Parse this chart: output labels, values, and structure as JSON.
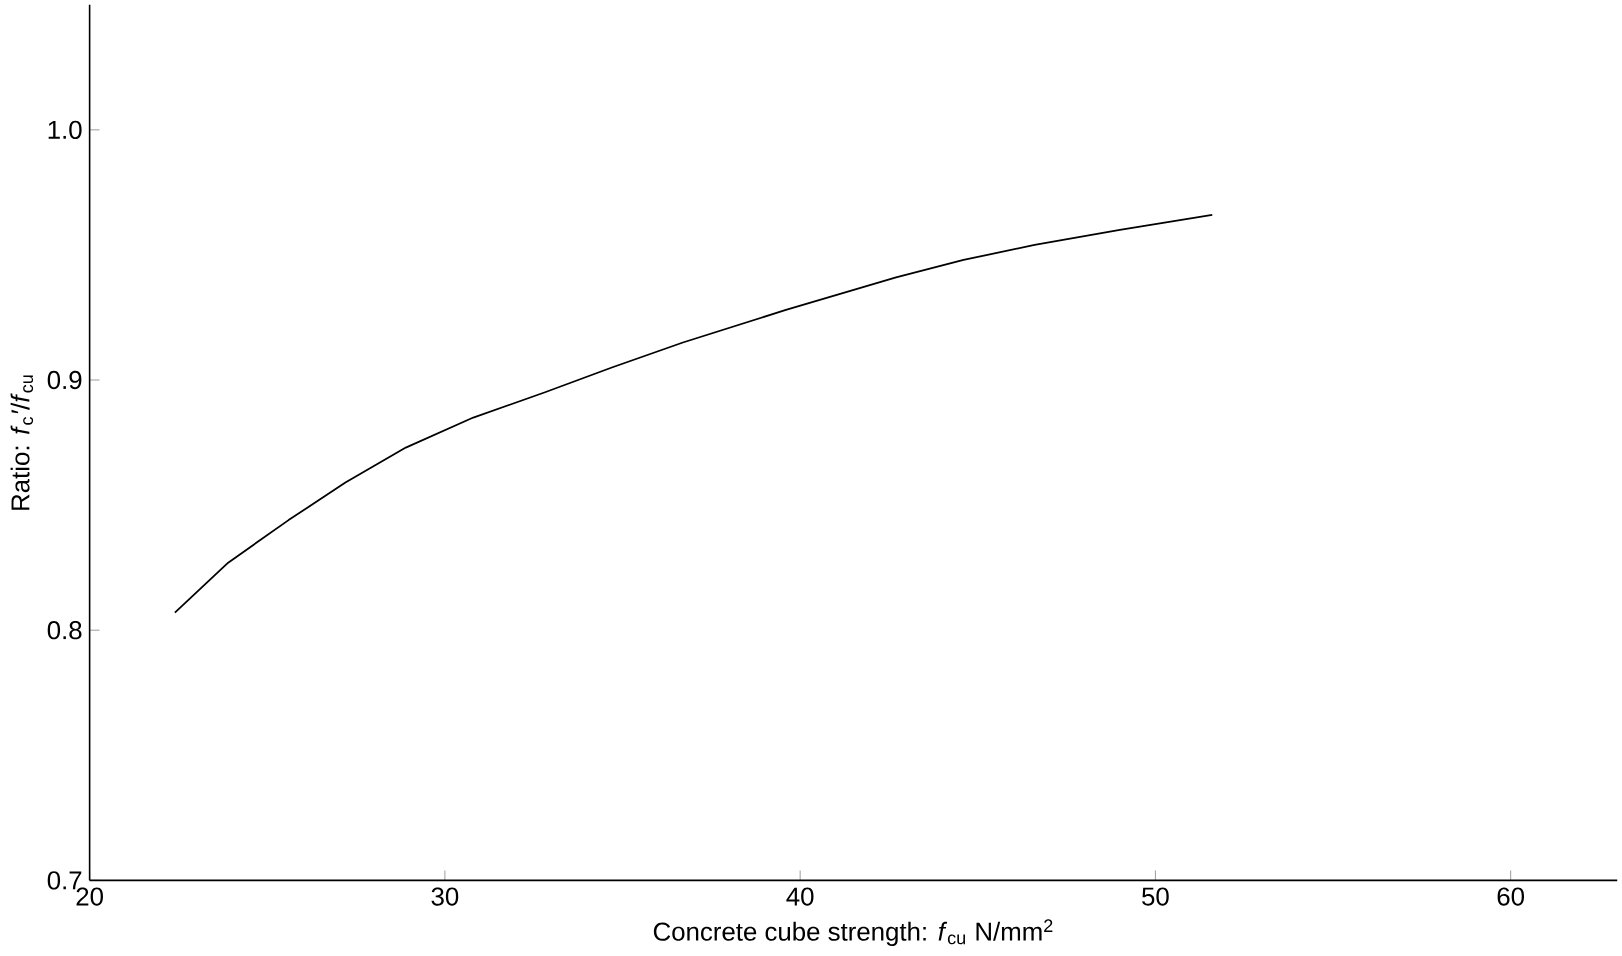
{
  "chart_data": {
    "type": "line",
    "xlabel": "Concrete cube strength: *f*$_{cu}$ N/mm$^{2}$",
    "ylabel": "Ratio: *f*$_{c}$*′*/*f*$_{cu}$",
    "xlim": [
      20,
      63
    ],
    "ylim": [
      0.7,
      1.05
    ],
    "xticks": [
      20,
      30,
      40,
      50,
      60
    ],
    "yticks": [
      {
        "value": 0.7,
        "label": "0.7"
      },
      {
        "value": 0.8,
        "label": "0.8"
      },
      {
        "value": 0.9,
        "label": "0.9"
      },
      {
        "value": 1.0,
        "label": "1.0"
      }
    ],
    "series": [
      {
        "color": "#000000",
        "x": [
          22.4,
          23.9,
          25.6,
          27.2,
          28.9,
          30.8,
          32.8,
          34.7,
          36.7,
          39.6,
          42.7,
          44.6,
          46.6,
          49.0,
          51.6
        ],
        "values": [
          0.807,
          0.827,
          0.844,
          0.859,
          0.873,
          0.885,
          0.895,
          0.905,
          0.915,
          0.928,
          0.941,
          0.948,
          0.954,
          0.96,
          0.966
        ]
      }
    ]
  }
}
